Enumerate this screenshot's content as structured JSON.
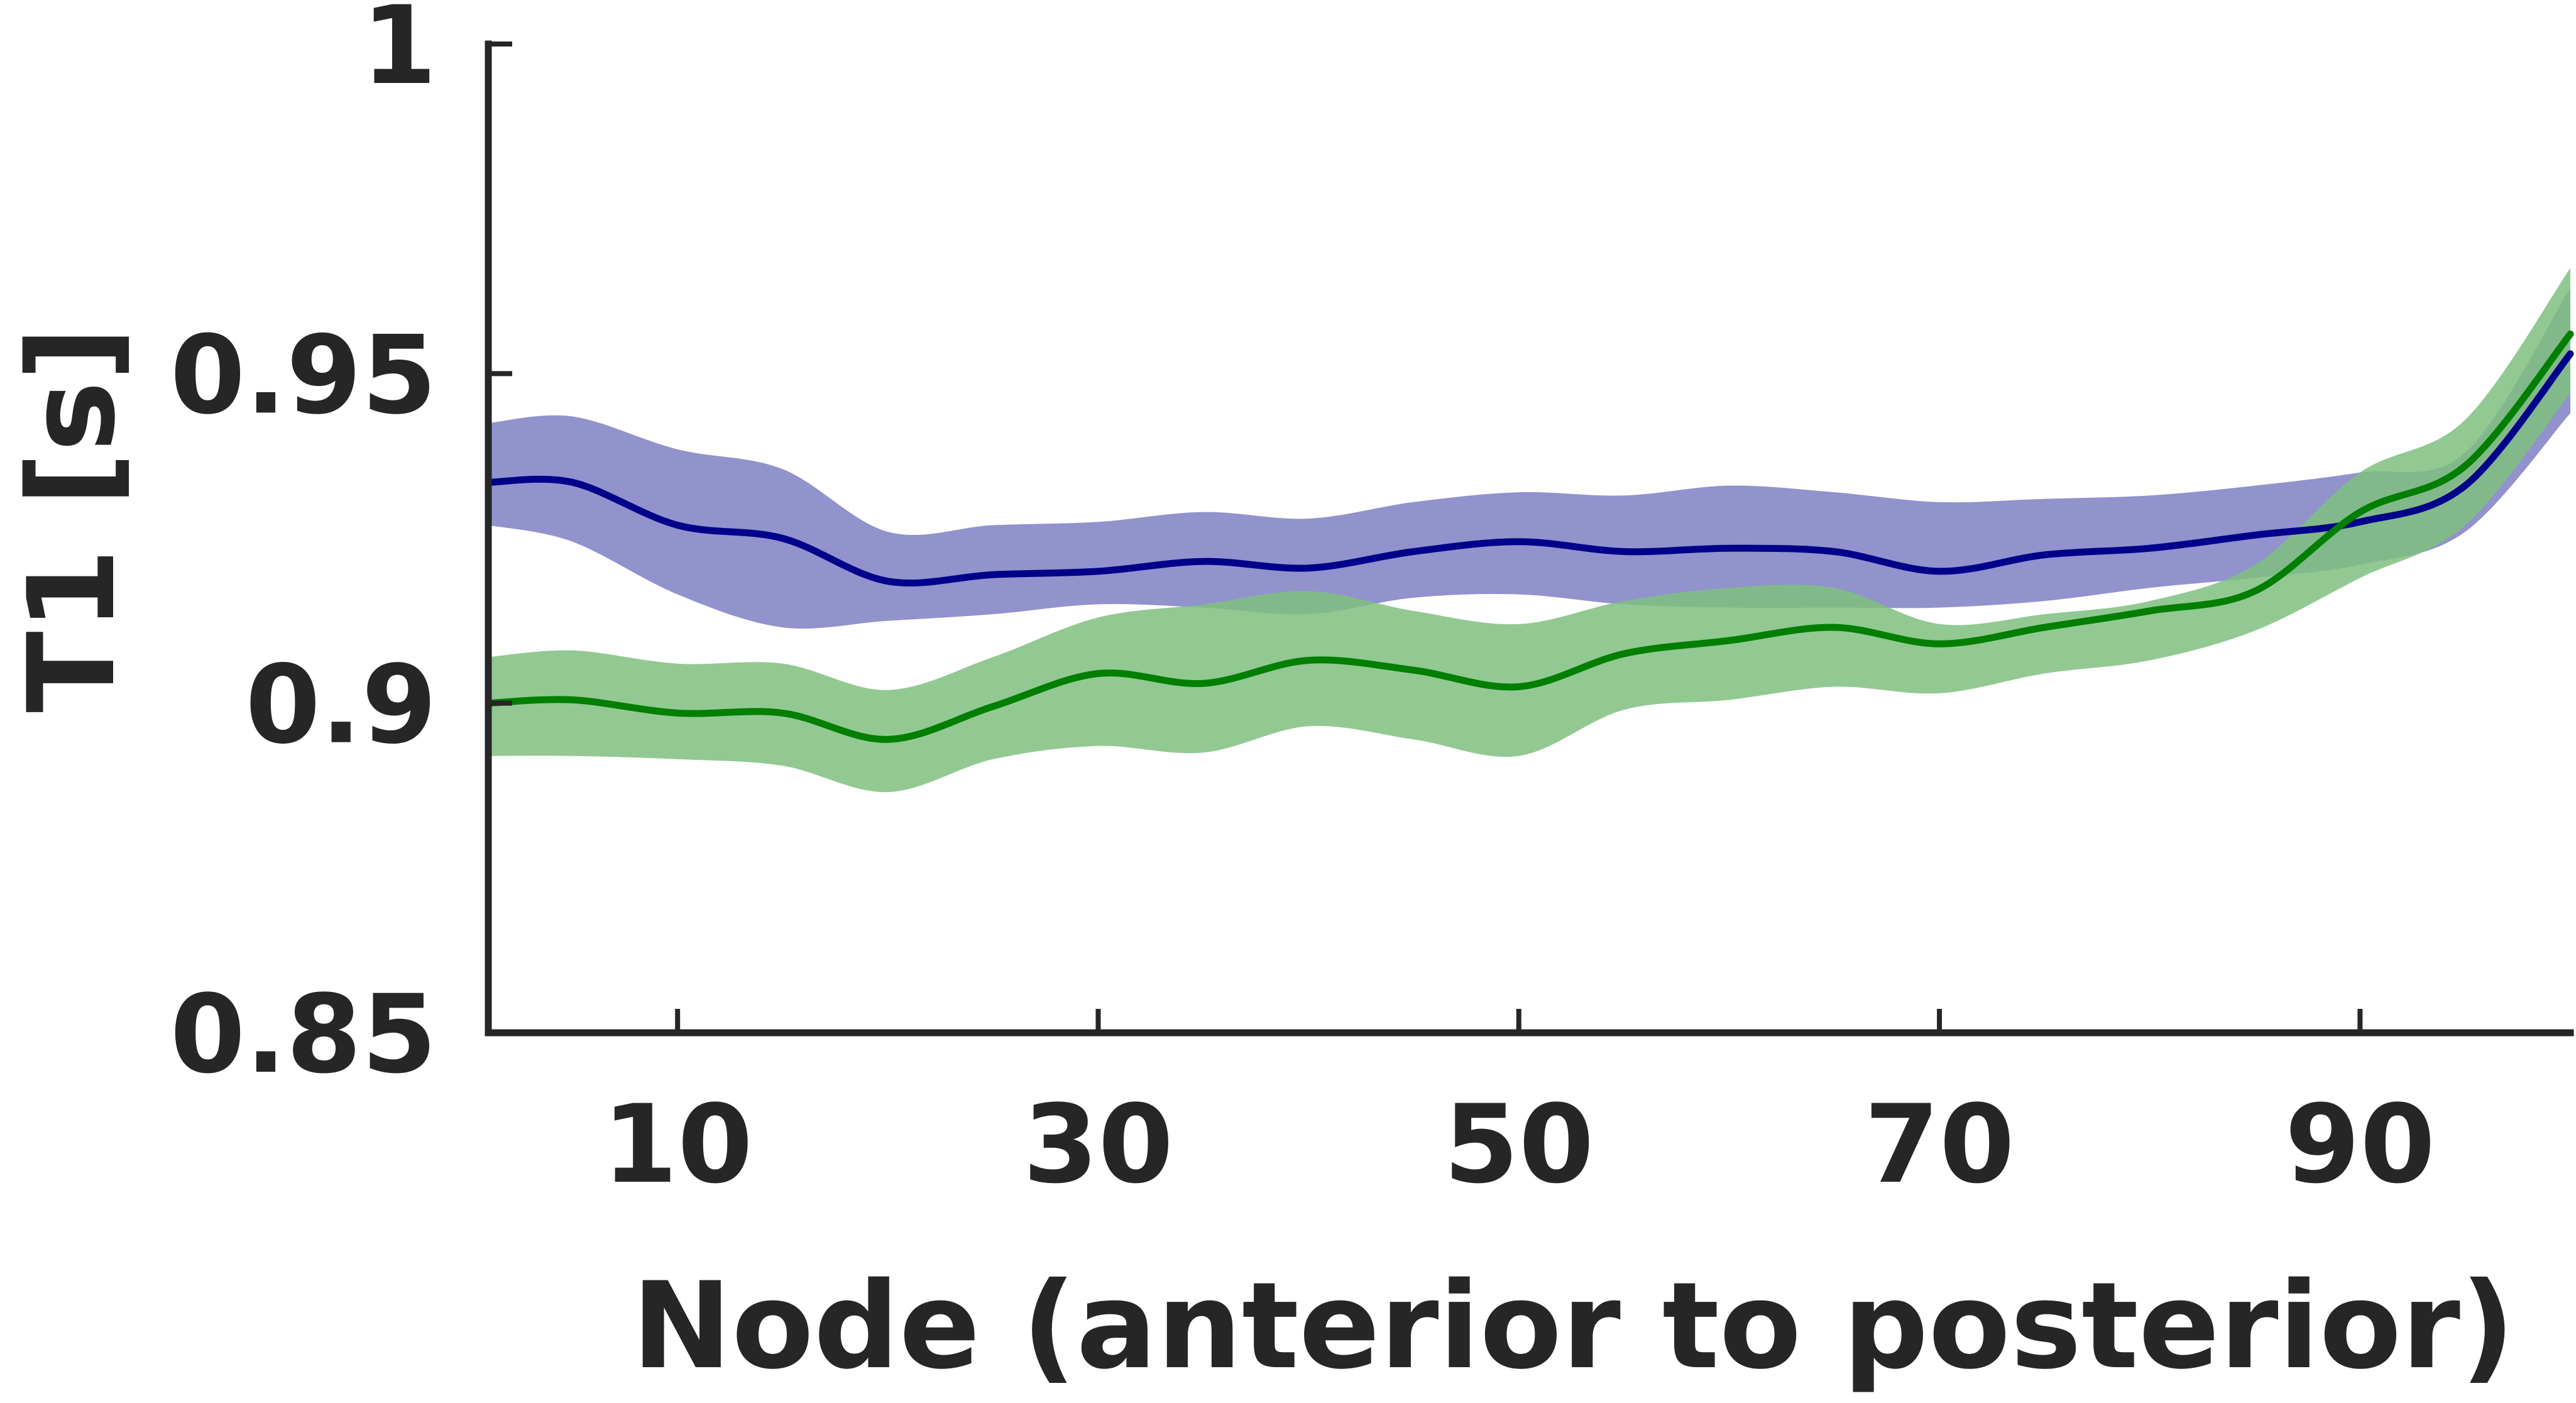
{
  "chart_data": {
    "type": "line",
    "title": "",
    "xlabel": "Node (anterior to posterior)",
    "ylabel": "T1 [s]",
    "xlim": [
      1,
      100
    ],
    "ylim": [
      0.85,
      1.0
    ],
    "xticks": [
      10,
      30,
      50,
      70,
      90
    ],
    "xtick_labels": [
      "10",
      "30",
      "50",
      "70",
      "90"
    ],
    "yticks": [
      0.85,
      0.9,
      0.95,
      1.0
    ],
    "ytick_labels": [
      "0.85",
      "0.9",
      "0.95",
      "1"
    ],
    "grid": false,
    "legend": "none",
    "x": [
      1,
      5,
      10,
      15,
      20,
      25,
      30,
      35,
      40,
      45,
      50,
      55,
      60,
      65,
      70,
      75,
      80,
      85,
      90,
      95,
      100
    ],
    "series": [
      {
        "color": "#00008b",
        "band_color": "#7f7fc4",
        "values": [
          0.9335,
          0.9335,
          0.927,
          0.925,
          0.9185,
          0.9195,
          0.92,
          0.9215,
          0.9205,
          0.923,
          0.9245,
          0.923,
          0.9235,
          0.923,
          0.92,
          0.9225,
          0.9235,
          0.9255,
          0.9275,
          0.933,
          0.953
        ],
        "upper": [
          0.9425,
          0.9435,
          0.9385,
          0.9355,
          0.926,
          0.927,
          0.9275,
          0.929,
          0.928,
          0.9305,
          0.932,
          0.9315,
          0.933,
          0.932,
          0.9305,
          0.931,
          0.9315,
          0.933,
          0.935,
          0.938,
          0.963
        ],
        "lower": [
          0.927,
          0.9245,
          0.9165,
          0.9115,
          0.9125,
          0.9135,
          0.915,
          0.9145,
          0.9135,
          0.916,
          0.9165,
          0.915,
          0.9145,
          0.9145,
          0.9145,
          0.9155,
          0.9175,
          0.919,
          0.921,
          0.926,
          0.944
        ]
      },
      {
        "color": "#007f00",
        "band_color": "#7fbf7f",
        "values": [
          0.9,
          0.9005,
          0.8985,
          0.8985,
          0.8945,
          0.8995,
          0.9045,
          0.903,
          0.9065,
          0.905,
          0.9025,
          0.9075,
          0.9095,
          0.9115,
          0.909,
          0.9115,
          0.914,
          0.917,
          0.929,
          0.936,
          0.956
        ],
        "upper": [
          0.907,
          0.908,
          0.906,
          0.906,
          0.902,
          0.907,
          0.913,
          0.915,
          0.917,
          0.914,
          0.912,
          0.9155,
          0.9175,
          0.9175,
          0.912,
          0.9135,
          0.9155,
          0.921,
          0.935,
          0.943,
          0.966
        ],
        "lower": [
          0.892,
          0.892,
          0.8915,
          0.8905,
          0.8865,
          0.8915,
          0.8935,
          0.8925,
          0.8965,
          0.8945,
          0.892,
          0.899,
          0.9005,
          0.9025,
          0.9015,
          0.9045,
          0.9065,
          0.911,
          0.919,
          0.927,
          0.947
        ]
      }
    ]
  }
}
